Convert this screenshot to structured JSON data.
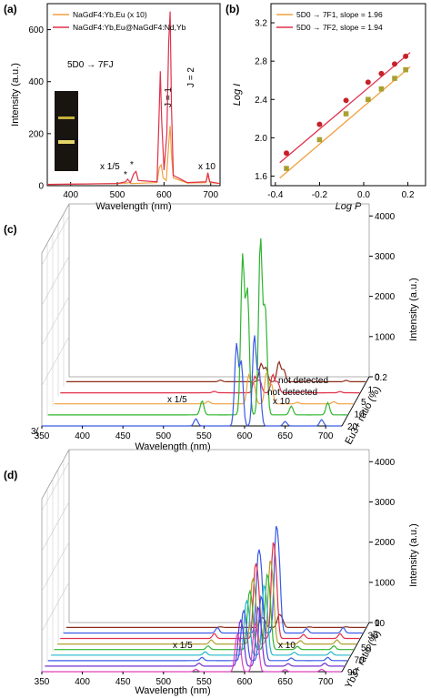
{
  "colors": {
    "orange": "#f0a040",
    "red": "#e0304a",
    "brown": "#8b2a1a",
    "green": "#2fb52f",
    "blue": "#3a5ae8",
    "pink": "#e040c0",
    "cyan": "#20b8c8",
    "purple": "#7030d0",
    "olive": "#b0a030",
    "red_point": "#c8202a",
    "olive_point": "#a8a030"
  },
  "panel_a": {
    "label": "(a)",
    "legend": [
      "NaGdF4:Yb,Eu (x 10)",
      "NaGdF4:Yb,Eu@NaGdF4:Nd,Yb"
    ],
    "annotation_transition": "5D0 → 7FJ",
    "annotation_j1": "J = 1",
    "annotation_j2": "J = 2",
    "annotation_x15": "x 1/5",
    "annotation_star1": "*",
    "annotation_star2": "*",
    "annotation_x10": "x 10"
  },
  "panel_b": {
    "label": "(b)",
    "legend": [
      "5D0 → 7F1, slope = 1.96",
      "5D0 → 7F2, slope = 1.94"
    ]
  },
  "panel_c": {
    "label": "(c)",
    "annotation_x15": "x 1/5",
    "annotation_x10": "x 10",
    "annotation_nd1": "not detected",
    "annotation_nd2": "not detected",
    "stray_text": "3("
  },
  "panel_d": {
    "label": "(d)",
    "annotation_x15": "x 1/5",
    "annotation_x10": "x 10"
  },
  "chart_data": [
    {
      "type": "line",
      "xlabel": "Wavelength (nm)",
      "ylabel": "Intensity (a.u.)",
      "xlim": [
        350,
        720
      ],
      "ylim": [
        0,
        700
      ],
      "xticks": [
        400,
        500,
        600,
        700
      ],
      "yticks": [
        0,
        200,
        400,
        600
      ],
      "series": [
        {
          "name": "NaGdF4:Yb,Eu (x 10)",
          "color": "#f0a040",
          "x": [
            350,
            500,
            520,
            525,
            530,
            585,
            590,
            594,
            598,
            605,
            610,
            613,
            616,
            620,
            650,
            690,
            694,
            698,
            720
          ],
          "y": [
            5,
            8,
            10,
            12,
            8,
            12,
            70,
            80,
            30,
            20,
            160,
            230,
            120,
            30,
            10,
            12,
            40,
            12,
            8
          ]
        },
        {
          "name": "NaGdF4:Yb,Eu@NaGdF4:Nd,Yb",
          "color": "#e0304a",
          "x": [
            350,
            500,
            518,
            522,
            528,
            535,
            540,
            545,
            585,
            589,
            592,
            595,
            600,
            606,
            610,
            613,
            616,
            620,
            650,
            690,
            694,
            698,
            720
          ],
          "y": [
            5,
            8,
            15,
            25,
            12,
            45,
            55,
            20,
            15,
            240,
            440,
            250,
            60,
            200,
            550,
            670,
            300,
            40,
            12,
            15,
            50,
            15,
            8
          ]
        }
      ]
    },
    {
      "type": "scatter",
      "xlabel": "Log P",
      "ylabel": "Log I",
      "xlim": [
        -0.42,
        0.28
      ],
      "ylim": [
        1.5,
        3.4
      ],
      "xticks": [
        -0.4,
        -0.2,
        0.0,
        0.2
      ],
      "yticks": [
        1.6,
        2.0,
        2.4,
        2.8,
        3.2
      ],
      "series": [
        {
          "name": "5D0 → 7F1, slope = 1.96",
          "color": "#f0a040",
          "point_color": "#a8a030",
          "marker": "square",
          "x": [
            -0.35,
            -0.2,
            -0.08,
            0.02,
            0.08,
            0.14,
            0.19
          ],
          "y": [
            1.68,
            1.98,
            2.25,
            2.4,
            2.51,
            2.62,
            2.71
          ],
          "fit": {
            "x": [
              -0.38,
              0.21
            ],
            "y": [
              1.58,
              2.74
            ]
          }
        },
        {
          "name": "5D0 → 7F2, slope = 1.94",
          "color": "#e0304a",
          "point_color": "#c8202a",
          "marker": "circle",
          "x": [
            -0.35,
            -0.2,
            -0.08,
            0.02,
            0.08,
            0.14,
            0.19
          ],
          "y": [
            1.84,
            2.14,
            2.39,
            2.58,
            2.67,
            2.77,
            2.85
          ],
          "fit": {
            "x": [
              -0.38,
              0.21
            ],
            "y": [
              1.74,
              2.89
            ]
          }
        }
      ]
    },
    {
      "type": "line",
      "projection": "3d-waterfall",
      "xlabel": "Wavelength (nm)",
      "ylabel": "Eu3+ ratio (%)",
      "zlabel": "Intensity (a.u.)",
      "xlim": [
        350,
        720
      ],
      "zlim": [
        0,
        4300
      ],
      "xticks": [
        350,
        400,
        450,
        500,
        550,
        600,
        650,
        700
      ],
      "zticks": [
        0,
        1000,
        2000,
        3000,
        4000
      ],
      "depth_ticks": [
        "0.2",
        "1",
        "5",
        "10",
        "20"
      ],
      "series": [
        {
          "name": "20",
          "color": "#3a5ae8",
          "peak_scale": 1.0
        },
        {
          "name": "10",
          "color": "#2fb52f",
          "peak_scale": 1.95
        },
        {
          "name": "5",
          "color": "#f0a040",
          "peak_scale": 0.35
        },
        {
          "name": "1",
          "color": "#e0304a",
          "peak_scale": 0.2
        },
        {
          "name": "0.2",
          "color": "#8b2a1a",
          "peak_scale": 0.22
        }
      ]
    },
    {
      "type": "line",
      "projection": "3d-waterfall",
      "xlabel": "Wavelength (nm)",
      "ylabel": "Yb3+ ratio (%)",
      "zlabel": "Intensity (a.u.)",
      "xlim": [
        350,
        720
      ],
      "zlim": [
        0,
        4300
      ],
      "xticks": [
        350,
        400,
        450,
        500,
        550,
        600,
        650,
        700
      ],
      "zticks": [
        0,
        1000,
        2000,
        3000,
        4000
      ],
      "depth_ticks": [
        "10",
        "30",
        "50",
        "70",
        "90"
      ],
      "series": [
        {
          "name": "90",
          "color": "#e040c0",
          "peak_scale": 0.45
        },
        {
          "name": "80",
          "color": "#7030d0",
          "peak_scale": 0.55
        },
        {
          "name": "70",
          "color": "#3a5ae8",
          "peak_scale": 0.6
        },
        {
          "name": "60",
          "color": "#20b8c8",
          "peak_scale": 0.65
        },
        {
          "name": "50",
          "color": "#2fb52f",
          "peak_scale": 0.7
        },
        {
          "name": "40",
          "color": "#b0a030",
          "peak_scale": 0.78
        },
        {
          "name": "30",
          "color": "#e0304a",
          "peak_scale": 0.9
        },
        {
          "name": "20",
          "color": "#3a5ae8",
          "peak_scale": 1.0
        },
        {
          "name": "10",
          "color": "#8b2a1a",
          "peak_scale": 0.12
        }
      ]
    }
  ]
}
